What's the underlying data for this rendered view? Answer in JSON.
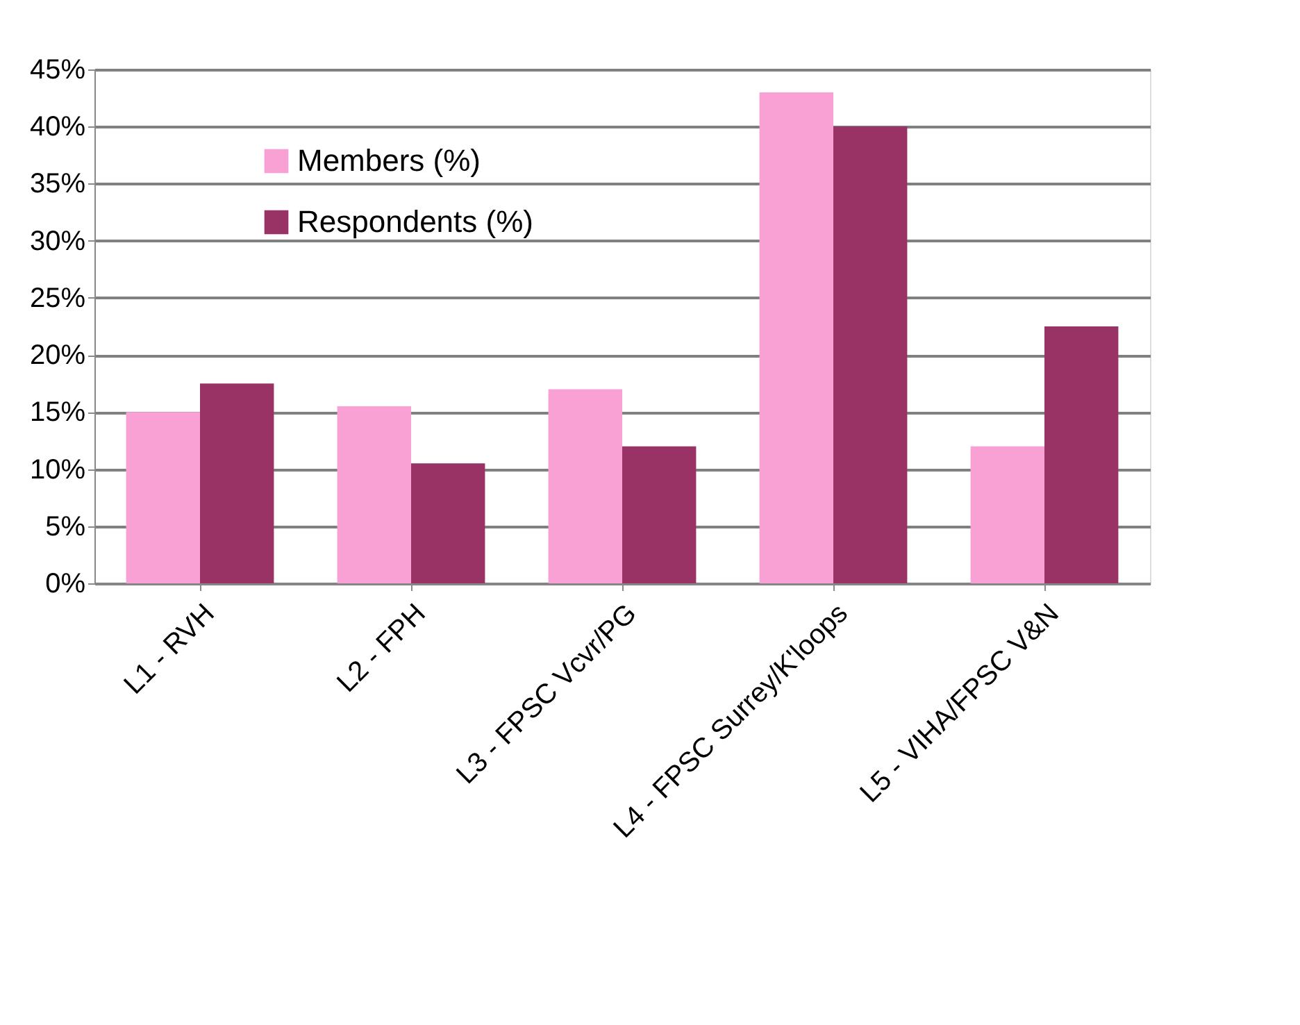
{
  "chart_data": {
    "type": "bar",
    "categories": [
      "L1 - RVH",
      "L2 - FPH",
      "L3 - FPSC Vcvr/PG",
      "L4 - FPSC Surrey/K'loops",
      "L5 - VIHA/FPSC V&N"
    ],
    "series": [
      {
        "name": "Members (%)",
        "color": "#f9a0d5",
        "values": [
          15,
          15.5,
          17,
          43,
          12
        ]
      },
      {
        "name": "Respondents (%)",
        "color": "#993366",
        "values": [
          17.5,
          10.5,
          12,
          40,
          22.5
        ]
      }
    ],
    "ylim": [
      0,
      45
    ],
    "yticks": [
      {
        "value": 0,
        "label": "0%"
      },
      {
        "value": 5,
        "label": "5%"
      },
      {
        "value": 10,
        "label": "10%"
      },
      {
        "value": 15,
        "label": "15%"
      },
      {
        "value": 20,
        "label": "20%"
      },
      {
        "value": 25,
        "label": "25%"
      },
      {
        "value": 30,
        "label": "30%"
      },
      {
        "value": 35,
        "label": "35%"
      },
      {
        "value": 40,
        "label": "40%"
      },
      {
        "value": 45,
        "label": "45%"
      }
    ],
    "grid": "y",
    "legend": "top left"
  }
}
